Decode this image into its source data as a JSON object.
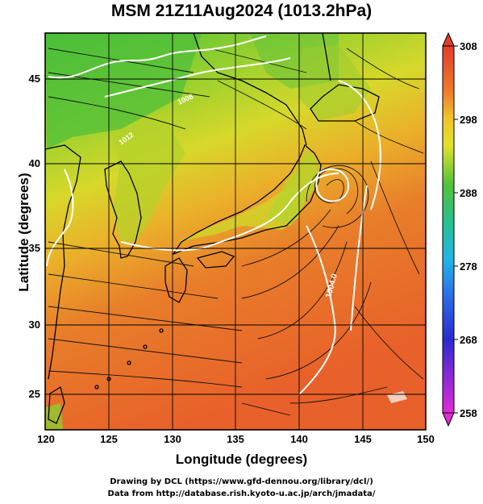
{
  "title": "MSM 21Z11Aug2024 (1013.2hPa)",
  "x_axis": {
    "label": "Longitude (degrees)",
    "ticks": [
      "120",
      "125",
      "130",
      "135",
      "140",
      "145",
      "150"
    ],
    "range": [
      120,
      150
    ]
  },
  "y_axis": {
    "label": "Latitude  (degrees)",
    "ticks": [
      "25",
      "30",
      "35",
      "40",
      "45"
    ],
    "range": [
      23,
      48
    ]
  },
  "colorbar": {
    "min_label": "258",
    "max_label": "308",
    "ticks": [
      "308",
      "298",
      "288",
      "278",
      "268",
      "258"
    ]
  },
  "contour_labels": [
    "1004.0",
    "1008",
    "1012"
  ],
  "credits": {
    "line1": "Drawing by DCL (https://www.gfd-dennou.org/library/dcl/)",
    "line2": "Data from http://database.rish.kyoto-u.ac.jp/arch/jmadata/"
  },
  "colors": {
    "warm": "#e8602a",
    "mid": "#c8d62a",
    "cool": "#4fbf3a",
    "contour": "#ffffff"
  }
}
